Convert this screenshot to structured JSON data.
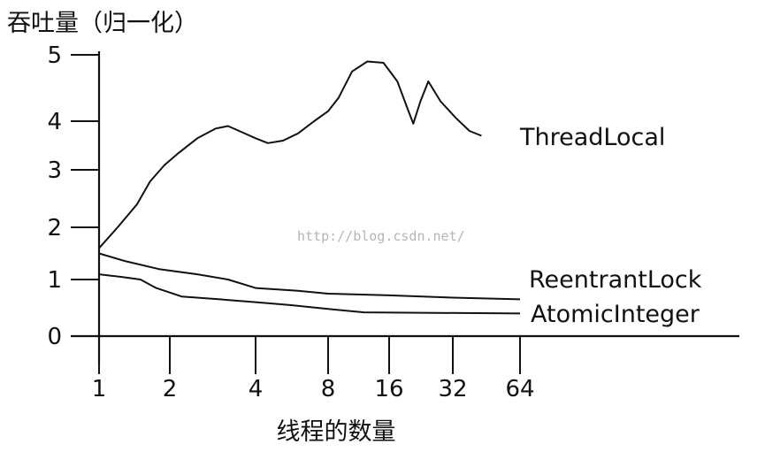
{
  "chart_data": {
    "type": "line",
    "title": "",
    "ylabel": "吞吐量（归一化）",
    "xlabel": "线程的数量",
    "xscale": "log2",
    "ylim": [
      0,
      5
    ],
    "grid": false,
    "legend": "none (labels at line ends)",
    "y_ticks": [
      {
        "value": 0,
        "label": "0"
      },
      {
        "value": 1,
        "label": "1"
      },
      {
        "value": 2,
        "label": "2"
      },
      {
        "value": 3,
        "label": "3"
      },
      {
        "value": 4,
        "label": "4"
      },
      {
        "value": 5,
        "label": "5"
      }
    ],
    "x_ticks": [
      {
        "value": 1,
        "label": "1"
      },
      {
        "value": 2,
        "label": "2"
      },
      {
        "value": 4,
        "label": "4"
      },
      {
        "value": 8,
        "label": "8"
      },
      {
        "value": 16,
        "label": "16"
      },
      {
        "value": 32,
        "label": "32"
      },
      {
        "value": 64,
        "label": "64"
      }
    ],
    "series": [
      {
        "name": "ThreadLocal",
        "points": [
          [
            1,
            1.6
          ],
          [
            1.2,
            2.0
          ],
          [
            1.45,
            2.4
          ],
          [
            1.65,
            2.8
          ],
          [
            1.9,
            3.1
          ],
          [
            2.15,
            3.35
          ],
          [
            2.5,
            3.65
          ],
          [
            2.9,
            3.85
          ],
          [
            3.2,
            3.9
          ],
          [
            3.5,
            3.8
          ],
          [
            4.0,
            3.65
          ],
          [
            4.5,
            3.55
          ],
          [
            5.2,
            3.6
          ],
          [
            6.0,
            3.75
          ],
          [
            7.0,
            4.0
          ],
          [
            8.0,
            4.15
          ],
          [
            9.0,
            4.35
          ],
          [
            10.5,
            4.75
          ],
          [
            12.5,
            4.9
          ],
          [
            15.0,
            4.88
          ],
          [
            17.5,
            4.6
          ],
          [
            19.5,
            4.2
          ],
          [
            20.8,
            3.95
          ],
          [
            22.5,
            4.3
          ],
          [
            24.5,
            4.6
          ],
          [
            28.0,
            4.3
          ],
          [
            33.0,
            4.05
          ],
          [
            38.0,
            3.8
          ],
          [
            43.0,
            3.7
          ]
        ]
      },
      {
        "name": "ReentrantLock",
        "points": [
          [
            1,
            1.5
          ],
          [
            1.3,
            1.35
          ],
          [
            1.8,
            1.2
          ],
          [
            2.5,
            1.1
          ],
          [
            3.2,
            1.0
          ],
          [
            4.0,
            0.85
          ],
          [
            6.0,
            0.8
          ],
          [
            8.0,
            0.75
          ],
          [
            16.0,
            0.72
          ],
          [
            32.0,
            0.68
          ],
          [
            64.0,
            0.65
          ]
        ]
      },
      {
        "name": "AtomicInteger",
        "points": [
          [
            1,
            1.1
          ],
          [
            1.25,
            1.05
          ],
          [
            1.5,
            1.0
          ],
          [
            1.75,
            0.85
          ],
          [
            2.2,
            0.7
          ],
          [
            3.0,
            0.65
          ],
          [
            4.0,
            0.6
          ],
          [
            5.5,
            0.55
          ],
          [
            8.0,
            0.48
          ],
          [
            12.0,
            0.42
          ],
          [
            64.0,
            0.4
          ]
        ]
      }
    ]
  },
  "watermark": "http://blog.csdn.net/"
}
